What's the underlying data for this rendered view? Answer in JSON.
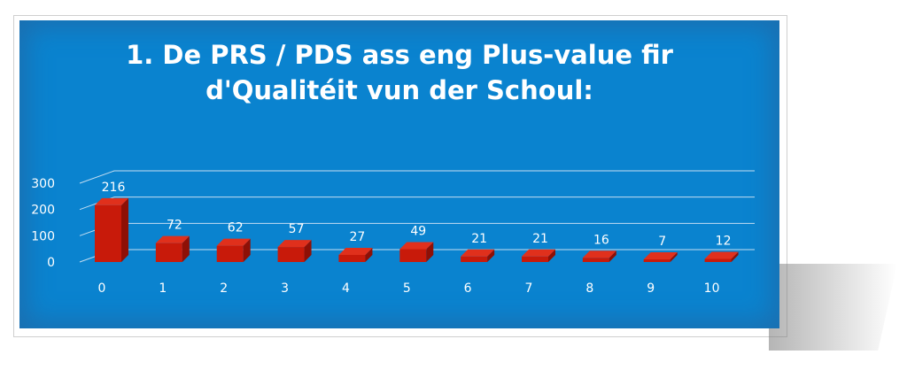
{
  "title_lines": [
    "1. De PRS / PDS ass eng Plus-value fir",
    "d'Qualitéit vun der Schoul:"
  ],
  "colors": {
    "background": "#0a83cf",
    "bar_front": "#c81a0a",
    "bar_side": "#8e1006",
    "bar_top": "#e0301c",
    "text": "#ffffff"
  },
  "chart_data": {
    "type": "bar",
    "title": "1. De PRS / PDS ass eng Plus-value fir d'Qualitéit vun der Schoul:",
    "categories": [
      "0",
      "1",
      "2",
      "3",
      "4",
      "5",
      "6",
      "7",
      "8",
      "9",
      "10"
    ],
    "values": [
      216,
      72,
      62,
      57,
      27,
      49,
      21,
      21,
      16,
      7,
      12
    ],
    "ylim": [
      0,
      300
    ],
    "yticks": [
      "0",
      "100",
      "200",
      "300"
    ],
    "grid": true,
    "data_labels": true
  }
}
